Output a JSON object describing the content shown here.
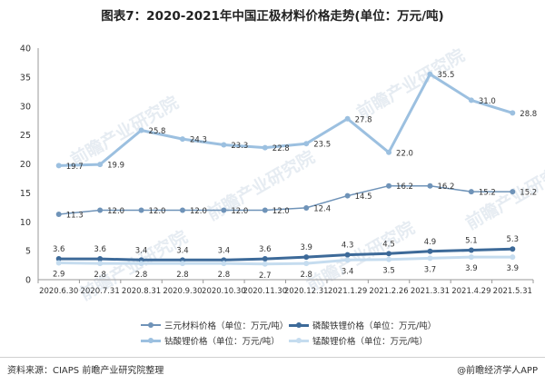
{
  "title": "图表7：2020-2021年中国正极材料价格走势(单位：万元/吨)",
  "chart_data": {
    "type": "line",
    "categories": [
      "2020.6.30",
      "2020.7.31",
      "2020.8.31",
      "2020.9.30",
      "2020.10.30",
      "2020.11.30",
      "2020.12.31",
      "2021.1.29",
      "2021.2.26",
      "2021.3.31",
      "2021.4.29",
      "2021.5.31"
    ],
    "ylim": [
      0,
      40
    ],
    "yticks": [
      "0",
      "5",
      "10",
      "15",
      "20",
      "25",
      "30",
      "35",
      "40"
    ],
    "series": [
      {
        "name": "三元材料价格（单位：万元/吨）",
        "color": "#6f93b8",
        "values": [
          11.3,
          12.0,
          12.0,
          12.0,
          12.0,
          12.0,
          12.4,
          14.5,
          16.2,
          16.2,
          15.2,
          15.2
        ],
        "labels": [
          "11.3",
          "12.0",
          "12.0",
          "12.0",
          "12.0",
          "12.0",
          "12.4",
          "14.5",
          "16.2",
          "16.2",
          "15.2",
          "15.2"
        ]
      },
      {
        "name": "磷酸铁锂价格（单位：万元/吨）",
        "color": "#3d6a99",
        "values": [
          3.6,
          3.6,
          3.4,
          3.4,
          3.4,
          3.6,
          3.9,
          4.3,
          4.5,
          4.9,
          5.1,
          5.3
        ],
        "labels": [
          "3.6",
          "3.6",
          "3.4",
          "3.4",
          "3.4",
          "3.6",
          "3.9",
          "4.3",
          "4.5",
          "4.9",
          "5.1",
          "5.3"
        ]
      },
      {
        "name": "钴酸锂价格（单位：万元/吨）",
        "color": "#9cc0e0",
        "values": [
          19.7,
          19.9,
          25.8,
          24.3,
          23.3,
          22.8,
          23.5,
          27.8,
          22.0,
          35.5,
          31.0,
          28.8
        ],
        "labels": [
          "19.7",
          "19.9",
          "25.8",
          "24.3",
          "23.3",
          "22.8",
          "23.5",
          "27.8",
          "22.0",
          "35.5",
          "31.0",
          "28.8"
        ]
      },
      {
        "name": "锰酸锂价格（单位：万元/吨）",
        "color": "#c5dcef",
        "values": [
          2.9,
          2.8,
          2.8,
          2.8,
          2.8,
          2.7,
          2.8,
          3.4,
          3.5,
          3.7,
          3.9,
          3.9
        ],
        "labels": [
          "2.9",
          "2.8",
          "2.8",
          "2.8",
          "2.8",
          "2.7",
          "2.8",
          "3.4",
          "3.5",
          "3.7",
          "3.9",
          "3.9"
        ]
      }
    ]
  },
  "watermark": "前瞻产业研究院",
  "footer": {
    "source": "资料来源：CIAPS 前瞻产业研究院整理",
    "brand": "@前瞻经济学人APP"
  }
}
